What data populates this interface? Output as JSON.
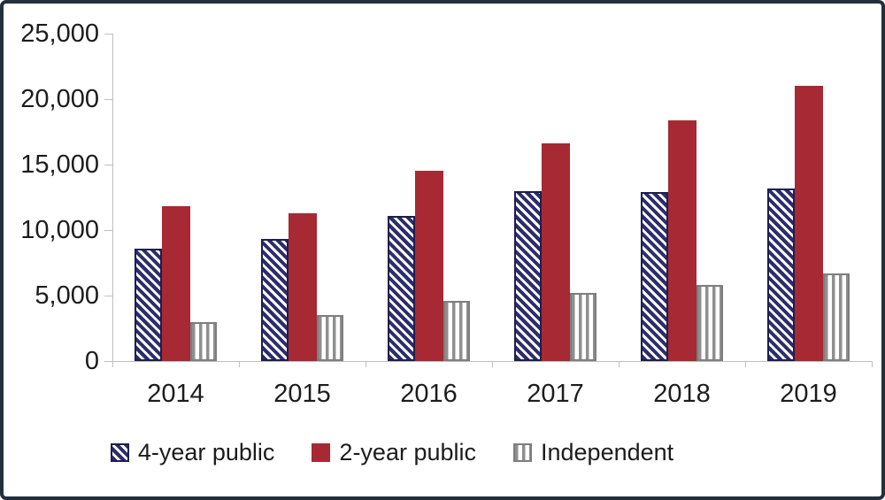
{
  "frame": {
    "border_color": "#232F3B",
    "background_color": "#FFFFFF",
    "axis_color": "#BFBFBF",
    "text_color": "#1C1C1C"
  },
  "chart_data": {
    "type": "bar",
    "title": "",
    "xlabel": "",
    "ylabel": "",
    "categories": [
      "2014",
      "2015",
      "2016",
      "2017",
      "2018",
      "2019"
    ],
    "series": [
      {
        "name": "4-year public",
        "pattern": "diagonal-hatch",
        "fill": "#2C2D6B",
        "border": "#1D1E4F",
        "values": [
          8600,
          9300,
          11100,
          13000,
          12900,
          13200
        ]
      },
      {
        "name": "2-year public",
        "pattern": "solid",
        "fill": "#A62933",
        "border": "#A62933",
        "values": [
          11800,
          11300,
          14500,
          16600,
          18400,
          21000
        ]
      },
      {
        "name": "Independent",
        "pattern": "vertical-stripes",
        "fill": "#8F8F8F",
        "border": "#7D7D7D",
        "values": [
          3000,
          3500,
          4600,
          5200,
          5800,
          6700
        ]
      }
    ],
    "ylim": [
      0,
      25000
    ],
    "ytick_interval": 5000,
    "ytick_labels": [
      "0",
      "5,000",
      "10,000",
      "15,000",
      "20,000",
      "25,000"
    ],
    "grid": false,
    "legend_position": "bottom"
  }
}
